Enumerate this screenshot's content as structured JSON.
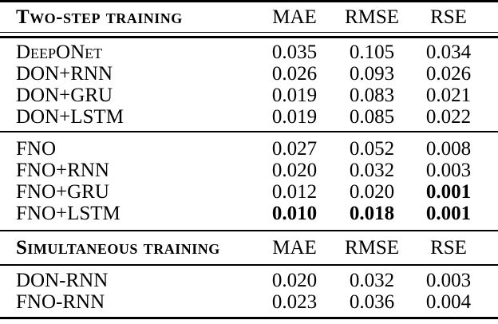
{
  "page": {
    "background_color": "#ffffff",
    "text_color": "#000000"
  },
  "table": {
    "sections": [
      {
        "title": "Two-step training",
        "columns": [
          "MAE",
          "RMSE",
          "RSE"
        ],
        "groups": [
          {
            "rows": [
              {
                "label": "DeepONet",
                "values": [
                  {
                    "t": "0.035",
                    "b": false
                  },
                  {
                    "t": "0.105",
                    "b": false
                  },
                  {
                    "t": "0.034",
                    "b": false
                  }
                ]
              },
              {
                "label": "DON+RNN",
                "values": [
                  {
                    "t": "0.026",
                    "b": false
                  },
                  {
                    "t": "0.093",
                    "b": false
                  },
                  {
                    "t": "0.026",
                    "b": false
                  }
                ]
              },
              {
                "label": "DON+GRU",
                "values": [
                  {
                    "t": "0.019",
                    "b": false
                  },
                  {
                    "t": "0.083",
                    "b": false
                  },
                  {
                    "t": "0.021",
                    "b": false
                  }
                ]
              },
              {
                "label": "DON+LSTM",
                "values": [
                  {
                    "t": "0.019",
                    "b": false
                  },
                  {
                    "t": "0.085",
                    "b": false
                  },
                  {
                    "t": "0.022",
                    "b": false
                  }
                ]
              }
            ]
          },
          {
            "rows": [
              {
                "label": "FNO",
                "values": [
                  {
                    "t": "0.027",
                    "b": false
                  },
                  {
                    "t": "0.052",
                    "b": false
                  },
                  {
                    "t": "0.008",
                    "b": false
                  }
                ]
              },
              {
                "label": "FNO+RNN",
                "values": [
                  {
                    "t": "0.020",
                    "b": false
                  },
                  {
                    "t": "0.032",
                    "b": false
                  },
                  {
                    "t": "0.003",
                    "b": false
                  }
                ]
              },
              {
                "label": "FNO+GRU",
                "values": [
                  {
                    "t": "0.012",
                    "b": false
                  },
                  {
                    "t": "0.020",
                    "b": false
                  },
                  {
                    "t": "0.001",
                    "b": true
                  }
                ]
              },
              {
                "label": "FNO+LSTM",
                "values": [
                  {
                    "t": "0.010",
                    "b": true
                  },
                  {
                    "t": "0.018",
                    "b": true
                  },
                  {
                    "t": "0.001",
                    "b": true
                  }
                ]
              }
            ]
          }
        ]
      },
      {
        "title": "Simultaneous training",
        "columns": [
          "MAE",
          "RMSE",
          "RSE"
        ],
        "groups": [
          {
            "rows": [
              {
                "label": "DON-RNN",
                "values": [
                  {
                    "t": "0.020",
                    "b": false
                  },
                  {
                    "t": "0.032",
                    "b": false
                  },
                  {
                    "t": "0.003",
                    "b": false
                  }
                ]
              },
              {
                "label": "FNO-RNN",
                "values": [
                  {
                    "t": "0.023",
                    "b": false
                  },
                  {
                    "t": "0.036",
                    "b": false
                  },
                  {
                    "t": "0.004",
                    "b": false
                  }
                ]
              }
            ]
          }
        ]
      }
    ]
  }
}
